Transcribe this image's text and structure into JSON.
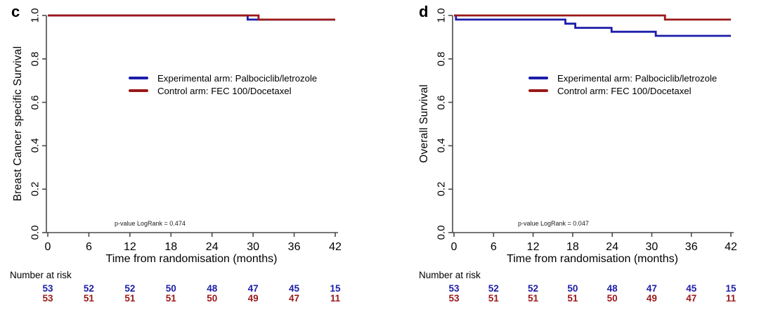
{
  "colors": {
    "experimental": "#1c1caa",
    "control": "#9b1818",
    "axis": "#4a4a4a",
    "background": "#ffffff"
  },
  "chart_data": [
    {
      "type": "line",
      "subtype": "kaplan-meier-step",
      "panel_label": "c",
      "xlabel": "Time from randomisation (months)",
      "ylabel": "Breast Cancer specific Survival",
      "xlim": [
        0,
        42
      ],
      "ylim": [
        0.0,
        1.0
      ],
      "x_ticks": [
        0,
        6,
        12,
        18,
        24,
        30,
        36,
        42
      ],
      "y_ticks": [
        "1.0",
        "0.8",
        "0.6",
        "0.4",
        "0.2",
        "0.0"
      ],
      "grid": false,
      "legend_position": "center-left",
      "annotation": "p-value LogRank = 0.474",
      "series": [
        {
          "key": "experimental",
          "name": "Experimental arm: Palbociclib/letrozole",
          "color": "#1c1caa",
          "x": [
            0,
            29.2,
            29.2,
            42
          ],
          "y": [
            1.0,
            1.0,
            0.981,
            0.981
          ]
        },
        {
          "key": "control",
          "name": "Control arm: FEC 100/Docetaxel",
          "color": "#9b1818",
          "x": [
            0,
            30.8,
            30.8,
            42
          ],
          "y": [
            1.0,
            1.0,
            0.981,
            0.981
          ]
        }
      ],
      "number_at_risk": {
        "label": "Number at risk",
        "times": [
          0,
          6,
          12,
          18,
          24,
          30,
          36,
          42
        ],
        "rows": [
          {
            "key": "experimental",
            "color": "#1c1caa",
            "values": [
              53,
              52,
              52,
              50,
              48,
              47,
              45,
              15
            ]
          },
          {
            "key": "control",
            "color": "#9b1818",
            "values": [
              53,
              51,
              51,
              51,
              50,
              49,
              47,
              11
            ]
          }
        ]
      }
    },
    {
      "type": "line",
      "subtype": "kaplan-meier-step",
      "panel_label": "d",
      "xlabel": "Time from randomisation (months)",
      "ylabel": "Overall Survival",
      "xlim": [
        0,
        42
      ],
      "ylim": [
        0.0,
        1.0
      ],
      "x_ticks": [
        0,
        6,
        12,
        18,
        24,
        30,
        36,
        42
      ],
      "y_ticks": [
        "1.0",
        "0.8",
        "0.6",
        "0.4",
        "0.2",
        "0.0"
      ],
      "grid": false,
      "legend_position": "center-left",
      "annotation": "p-value LogRank = 0.047",
      "series": [
        {
          "key": "experimental",
          "name": "Experimental arm: Palbociclib/letrozole",
          "color": "#1c1caa",
          "x": [
            0,
            0.3,
            0.3,
            16.9,
            16.9,
            18.4,
            18.4,
            23.9,
            23.9,
            30.6,
            30.6,
            42
          ],
          "y": [
            1.0,
            1.0,
            0.981,
            0.981,
            0.962,
            0.962,
            0.943,
            0.943,
            0.925,
            0.925,
            0.906,
            0.906
          ]
        },
        {
          "key": "control",
          "name": "Control arm: FEC 100/Docetaxel",
          "color": "#9b1818",
          "x": [
            0,
            32,
            32,
            42
          ],
          "y": [
            1.0,
            1.0,
            0.981,
            0.981
          ]
        }
      ],
      "number_at_risk": {
        "label": "Number at risk",
        "times": [
          0,
          6,
          12,
          18,
          24,
          30,
          36,
          42
        ],
        "rows": [
          {
            "key": "experimental",
            "color": "#1c1caa",
            "values": [
              53,
              52,
              52,
              50,
              48,
              47,
              45,
              15
            ]
          },
          {
            "key": "control",
            "color": "#9b1818",
            "values": [
              53,
              51,
              51,
              51,
              50,
              49,
              47,
              11
            ]
          }
        ]
      }
    }
  ]
}
